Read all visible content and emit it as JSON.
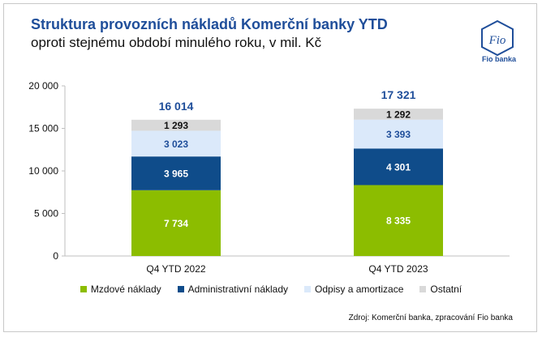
{
  "header": {
    "title": "Struktura provozních nákladů Komerční banky YTD",
    "subtitle": "oproti stejnému období minulého roku, v mil. Kč"
  },
  "logo": {
    "mark_text": "Fio",
    "name": "Fio banka"
  },
  "source_note": "Zdroj: Komerční banka, zpracování Fio banka",
  "chart_data": {
    "type": "bar",
    "stacked": true,
    "categories": [
      "Q4 YTD 2022",
      "Q4 YTD 2023"
    ],
    "series": [
      {
        "name": "Mzdové náklady",
        "values": [
          7734,
          8335
        ],
        "labels": [
          "7 734",
          "8 335"
        ],
        "color": "#8cbd00",
        "label_color": "#ffffff"
      },
      {
        "name": "Administrativní náklady",
        "values": [
          3965,
          4301
        ],
        "labels": [
          "3 965",
          "4 301"
        ],
        "color": "#0f4c8a",
        "label_color": "#ffffff"
      },
      {
        "name": "Odpisy a amortizace",
        "values": [
          3023,
          3393
        ],
        "labels": [
          "3 023",
          "3 393"
        ],
        "color": "#dbe9fa",
        "label_color": "#1f4e9a"
      },
      {
        "name": "Ostatní",
        "values": [
          1293,
          1292
        ],
        "labels": [
          "1 293",
          "1 292"
        ],
        "color": "#d9d9d9",
        "label_color": "#111111"
      }
    ],
    "totals": [
      16014,
      17321
    ],
    "total_labels": [
      "16 014",
      "17 321"
    ],
    "total_label_color": "#1f4e9a",
    "y_ticks": [
      0,
      5000,
      10000,
      15000,
      20000
    ],
    "y_tick_labels": [
      "0",
      "5 000",
      "10 000",
      "15 000",
      "20 000"
    ],
    "ylim": [
      0,
      20000
    ],
    "grid": false,
    "legend_position": "bottom"
  }
}
